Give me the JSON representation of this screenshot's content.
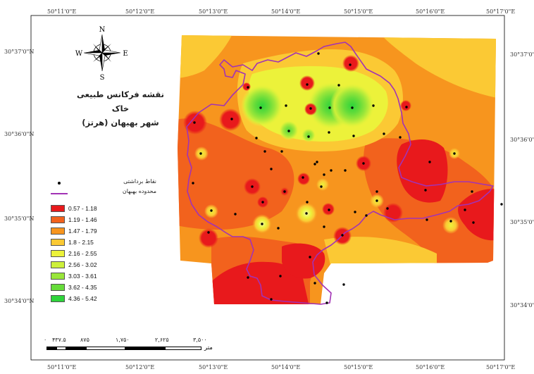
{
  "map": {
    "title_line1": "نقشه فرکانس طبیعی خاک",
    "title_line2": "شهر بهبهان (هرتز)"
  },
  "graticule": {
    "lon_labels": [
      "50°11'0\"E",
      "50°12'0\"E",
      "50°13'0\"E",
      "50°14'0\"E",
      "50°15'0\"E",
      "50°16'0\"E",
      "50°17'0\"E"
    ],
    "lat_labels": [
      "30°37'0\"N",
      "30°36'0\"N",
      "30°35'0\"N",
      "30°34'0\"N"
    ]
  },
  "north_arrow": {
    "n": "N",
    "e": "E",
    "s": "S",
    "w": "W"
  },
  "legend": {
    "points_label": "نقاط برداشتی",
    "boundary_label": "محدوده بهبهان",
    "classes": [
      {
        "range": "0.57 - 1.18",
        "color": "#e8191c"
      },
      {
        "range": "1.19 - 1.46",
        "color": "#f2621d"
      },
      {
        "range": "1.47 - 1.79",
        "color": "#f7951e"
      },
      {
        "range": "1.8 - 2.15",
        "color": "#fbc934"
      },
      {
        "range": "2.16 - 2.55",
        "color": "#ecf23a"
      },
      {
        "range": "2.56 - 3.02",
        "color": "#cdf03a"
      },
      {
        "range": "3.03 - 3.61",
        "color": "#99e63a"
      },
      {
        "range": "3.62 - 4.35",
        "color": "#66dc3a"
      },
      {
        "range": "4.36 - 5.42",
        "color": "#2ed43a"
      }
    ]
  },
  "scale_bar": {
    "ticks": [
      "۰",
      "۴۳۷.۵",
      "۸۷۵",
      "۱,۷۵۰",
      "۲,۶۲۵",
      "۳,۵۰۰"
    ],
    "unit": "متر"
  }
}
